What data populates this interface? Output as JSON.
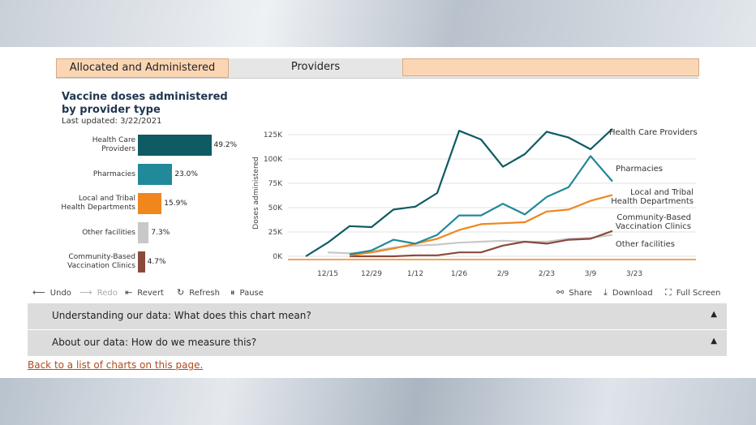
{
  "tabs": [
    "Allocated and Administered",
    "Providers",
    ""
  ],
  "title": "Vaccine doses administered by provider type",
  "updated": "Last updated: 3/22/2021",
  "toolbar": {
    "undo": "Undo",
    "redo": "Redo",
    "revert": "Revert",
    "refresh": "Refresh",
    "pause": "Pause",
    "share": "Share",
    "download": "Download",
    "fullscreen": "Full Screen"
  },
  "accordions": [
    "Understanding our data: What does this chart mean?",
    "About our data: How do we measure this?"
  ],
  "back_link": "Back to a list of charts on this page.",
  "colors": {
    "health_care": "#0e5b63",
    "pharmacies": "#20899a",
    "local_tribal": "#f0861c",
    "other": "#c8c8c8",
    "community": "#8a4a3c"
  },
  "chart_data": [
    {
      "type": "bar",
      "orientation": "horizontal",
      "categories": [
        "Health Care\nProviders",
        "Pharmacies",
        "Local and Tribal\nHealth Departments",
        "Other facilities",
        "Community-Based\nVaccination Clinics"
      ],
      "values": [
        49.2,
        23.0,
        15.9,
        7.3,
        4.7
      ],
      "value_labels": [
        "49.2%",
        "23.0%",
        "15.9%",
        "7.3%",
        "4.7%"
      ]
    },
    {
      "type": "line",
      "ylabel": "Doses administered",
      "ylim": [
        0,
        130000
      ],
      "yticks": [
        0,
        25000,
        50000,
        75000,
        100000,
        125000
      ],
      "yticklabels": [
        "0K",
        "25K",
        "50K",
        "75K",
        "100K",
        "125K"
      ],
      "xticklabels": [
        "12/15",
        "12/29",
        "1/12",
        "1/26",
        "2/9",
        "2/23",
        "3/9",
        "3/23"
      ],
      "x_week_index": [
        0,
        1,
        2,
        3,
        4,
        5,
        6,
        7,
        8,
        9,
        10,
        11,
        12,
        13,
        14
      ],
      "series": [
        {
          "name": "Health Care Providers",
          "values": [
            0,
            14000,
            31000,
            30000,
            48000,
            51000,
            65000,
            129000,
            120000,
            92000,
            105000,
            128000,
            122000,
            110000,
            131000
          ]
        },
        {
          "name": "Pharmacies",
          "values": [
            null,
            null,
            2000,
            6000,
            17000,
            13000,
            22000,
            42000,
            42000,
            54000,
            43000,
            61000,
            71000,
            103000,
            77000
          ]
        },
        {
          "name": "Local and Tribal Health Departments",
          "values": [
            null,
            null,
            1000,
            4000,
            8000,
            13000,
            18000,
            27000,
            33000,
            34000,
            35000,
            46000,
            48000,
            57000,
            63000
          ]
        },
        {
          "name": "Community-Based Vaccination Clinics",
          "values": [
            null,
            null,
            0,
            0,
            0,
            1000,
            1000,
            4000,
            4000,
            11000,
            15000,
            13000,
            17000,
            18000,
            26000
          ]
        },
        {
          "name": "Other facilities",
          "values": [
            null,
            4000,
            3000,
            5000,
            9000,
            11000,
            12000,
            14000,
            15000,
            16000,
            15000,
            15000,
            18000,
            19000,
            22000
          ]
        }
      ]
    }
  ]
}
